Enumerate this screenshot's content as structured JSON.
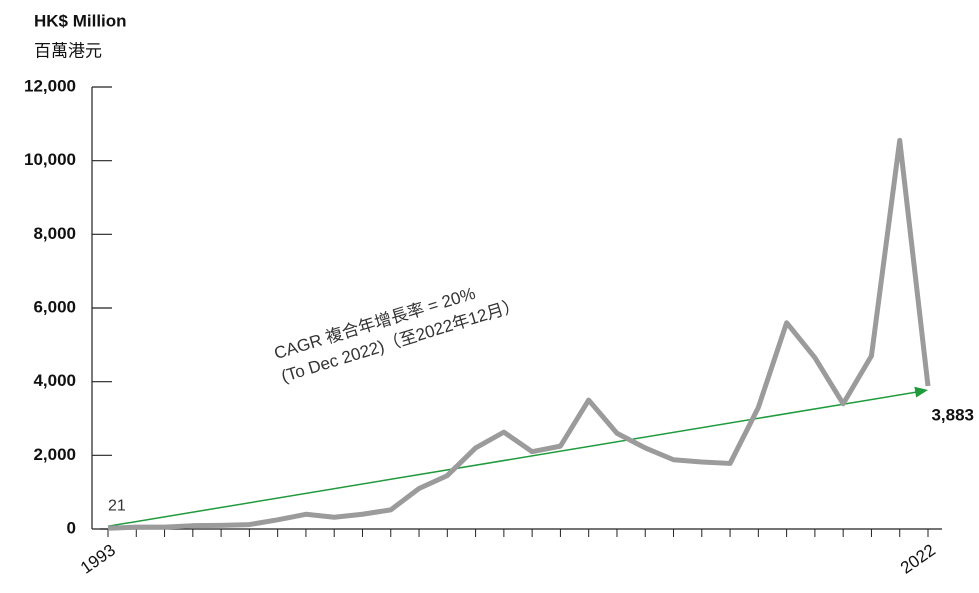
{
  "chart_data": {
    "type": "line",
    "y_axis_title": "HK$ Million",
    "y_axis_subtitle": "百萬港元",
    "annotation": [
      "CAGR 複合年增長率 = 20%",
      "(To Dec 2022)（至2022年12月）"
    ],
    "categories": [
      "1993",
      null,
      null,
      null,
      null,
      null,
      null,
      null,
      null,
      null,
      null,
      null,
      null,
      null,
      null,
      null,
      null,
      null,
      null,
      null,
      null,
      null,
      null,
      null,
      null,
      null,
      null,
      null,
      null,
      "2022"
    ],
    "values": [
      21,
      50,
      50,
      90,
      100,
      120,
      250,
      400,
      320,
      400,
      520,
      1100,
      1450,
      2200,
      2630,
      2100,
      2250,
      3500,
      2600,
      2200,
      1880,
      1820,
      1780,
      3300,
      5600,
      4650,
      3400,
      4700,
      10550,
      3883
    ],
    "value_labels": [
      "21",
      null,
      null,
      null,
      null,
      null,
      null,
      null,
      null,
      null,
      null,
      null,
      null,
      null,
      null,
      null,
      null,
      null,
      null,
      null,
      null,
      null,
      null,
      null,
      null,
      null,
      null,
      null,
      null,
      "3,883"
    ],
    "color": "#9b9b9b",
    "trend_color": "#1f9a3c",
    "ylim": [
      0,
      12000
    ],
    "yticks": [
      0,
      {
        "value": 2000,
        "label": "2,000"
      },
      {
        "value": 4000,
        "label": "4,000"
      },
      {
        "value": 6000,
        "label": "6,000"
      },
      {
        "value": 8000,
        "label": "8,000"
      },
      {
        "value": 10000,
        "label": "10,000"
      },
      {
        "value": 12000,
        "label": "12,000"
      }
    ]
  }
}
